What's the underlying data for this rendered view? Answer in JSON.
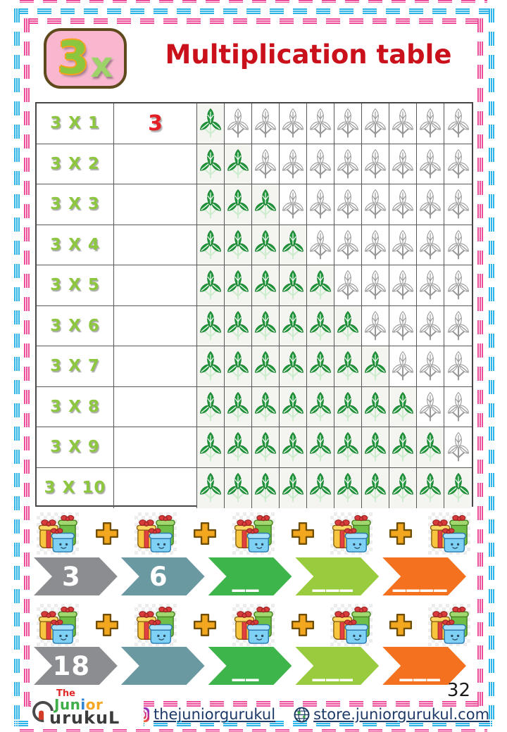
{
  "header": {
    "badge_number": "3",
    "badge_x": "x",
    "title": "Multiplication table"
  },
  "table": {
    "icons_per_row": 10,
    "icon": "leaf-sprig",
    "rows": [
      {
        "label": "3 X 1",
        "answer": "3",
        "filled_leaves": 1
      },
      {
        "label": "3 X 2",
        "answer": "",
        "filled_leaves": 2
      },
      {
        "label": "3 X 3",
        "answer": "",
        "filled_leaves": 3
      },
      {
        "label": "3 X 4",
        "answer": "",
        "filled_leaves": 4
      },
      {
        "label": "3 X 5",
        "answer": "",
        "filled_leaves": 5
      },
      {
        "label": "3 X 6",
        "answer": "",
        "filled_leaves": 6
      },
      {
        "label": "3 X 7",
        "answer": "",
        "filled_leaves": 7
      },
      {
        "label": "3 X 8",
        "answer": "",
        "filled_leaves": 8
      },
      {
        "label": "3 X 9",
        "answer": "",
        "filled_leaves": 9
      },
      {
        "label": "3 X 10",
        "answer": "",
        "filled_leaves": 10
      }
    ]
  },
  "activities": [
    {
      "gift_groups": 5,
      "plus_count": 4,
      "chevrons": [
        {
          "value": "3",
          "color": "#8b8d90",
          "blank": false
        },
        {
          "value": "6",
          "color": "#6a99a1",
          "blank": false
        },
        {
          "value": "__",
          "color": "#3eb54b",
          "blank": true
        },
        {
          "value": "___",
          "color": "#98cb3d",
          "blank": true
        },
        {
          "value": "____",
          "color": "#f3711f",
          "blank": true
        }
      ]
    },
    {
      "gift_groups": 5,
      "plus_count": 4,
      "chevrons": [
        {
          "value": "18",
          "color": "#8b8d90",
          "blank": false
        },
        {
          "value": "",
          "color": "#6a99a1",
          "blank": true
        },
        {
          "value": "__",
          "color": "#3eb54b",
          "blank": true
        },
        {
          "value": "___",
          "color": "#98cb3d",
          "blank": true
        },
        {
          "value": "___",
          "color": "#f3711f",
          "blank": true
        }
      ]
    }
  ],
  "footer": {
    "page_number": "32",
    "logo": {
      "the": "The",
      "jun": "Jun",
      "i": "i",
      "or": "or",
      "gurukul": "urukuL"
    },
    "links": [
      {
        "icon": "instagram-icon",
        "text": "thejuniorgurukul"
      },
      {
        "icon": "globe-icon",
        "text": "store.juniorgurukul.com"
      }
    ]
  },
  "colors": {
    "frame_pink": "#ee4d9b",
    "frame_cyan": "#2cb3e8",
    "title_red": "#c9101b",
    "label_green": "#8dc63f",
    "answer_red": "#e31e24",
    "leaf_green": "#21993c",
    "leaf_outline": "#979797"
  }
}
